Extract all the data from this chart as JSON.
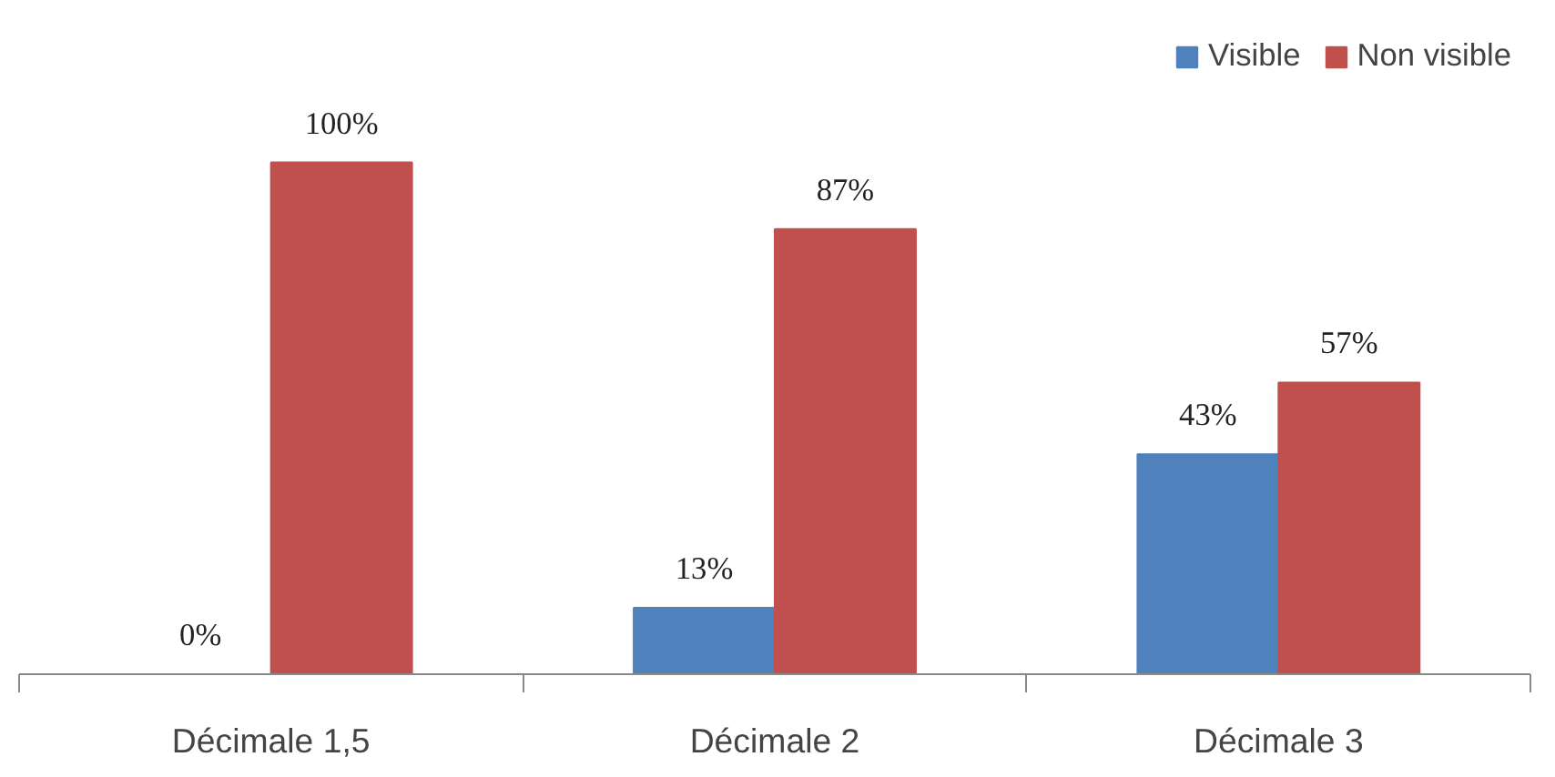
{
  "chart_data": {
    "type": "bar",
    "categories": [
      "Décimale 1,5",
      "Décimale 2",
      "Décimale 3"
    ],
    "series": [
      {
        "name": "Visible",
        "color": "#4f81bd",
        "values": [
          0,
          13,
          43
        ],
        "value_labels": [
          "0%",
          "13%",
          "43%"
        ]
      },
      {
        "name": "Non visible",
        "color": "#c0504d",
        "values": [
          100,
          87,
          57
        ],
        "value_labels": [
          "100%",
          "87%",
          "57%"
        ]
      }
    ],
    "legend": "top right",
    "grid": false
  }
}
